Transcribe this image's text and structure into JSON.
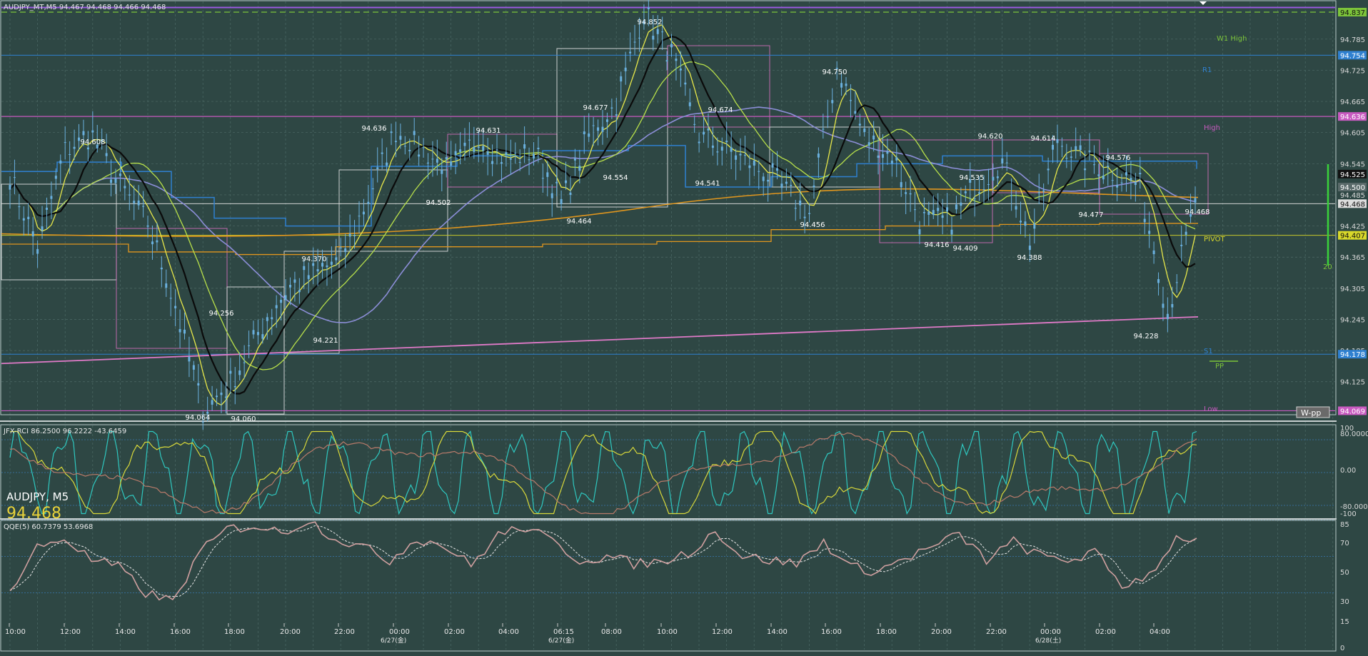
{
  "header": {
    "symbol_line": "AUDJPY_MT,M5  94.467 94.468 94.466 94.468"
  },
  "symbol_box": {
    "name": "AUDJPY, M5",
    "price": "94.468"
  },
  "colors": {
    "background": "#2e4744",
    "grid": "#4d6a66",
    "candle": "#6ab0de",
    "black_ma": "#0a0a0a",
    "yellow_ma": "#e8e84a",
    "green_ma": "#b8e04a",
    "purple_ma": "#8c8ed8",
    "orange_ma": "#e0961e",
    "blue_step": "#2f80d0",
    "magenta_line": "#e07ac8",
    "pivot_line": "#c8c82a",
    "rci_cyan": "#2ec8c0",
    "rci_yellow": "#d8d83a",
    "rci_brown": "#b87a6a",
    "qqe_main": "#d0a0a0",
    "qqe_signal": "#e8e8e8"
  },
  "main_axis": {
    "ticks": [
      "94.785",
      "94.725",
      "94.665",
      "94.605",
      "94.545",
      "94.485",
      "94.425",
      "94.365",
      "94.305",
      "94.245",
      "94.185",
      "94.125"
    ]
  },
  "price_tags": [
    {
      "value": "94.837",
      "color": "#7cc43a"
    },
    {
      "value": "94.754",
      "color": "#2f80d0"
    },
    {
      "value": "94.636",
      "color": "#c85ac0"
    },
    {
      "value": "94.525",
      "color": "#111111"
    },
    {
      "value": "94.500",
      "color": "#5a6a6a"
    },
    {
      "value": "94.468",
      "color": "#dddddd"
    },
    {
      "value": "94.407",
      "color": "#d8d82a"
    },
    {
      "value": "94.178",
      "color": "#2f80d0"
    },
    {
      "value": "94.069",
      "color": "#c85ac0"
    }
  ],
  "level_labels": {
    "w1_high": "W1 High",
    "r1": "R1",
    "high": "High",
    "pivot": "PIVOT",
    "s1": "S1",
    "pp": "PP",
    "low": "Low",
    "wpp_button": "W-pp",
    "side_number": "20"
  },
  "peak_labels": [
    "94.852",
    "94.608",
    "94.636",
    "94.631",
    "94.677",
    "94.674",
    "94.750",
    "94.620",
    "94.614",
    "94.576",
    "94.535",
    "94.468",
    "94.554",
    "94.541",
    "94.502",
    "94.464",
    "94.456",
    "94.477",
    "94.416",
    "94.409",
    "94.388",
    "94.370",
    "94.256",
    "94.221",
    "94.228",
    "94.064",
    "94.060"
  ],
  "rci": {
    "header": "JFX-RCI 86.2500 96.2222 -43.6459",
    "ticks": [
      "100",
      "80.0000",
      "0.00",
      "-80.0000",
      "-100"
    ]
  },
  "qqe": {
    "header": "QQE(5) 60.7379 53.6968",
    "ticks": [
      "85",
      "70",
      "50",
      "30",
      "15",
      "0"
    ]
  },
  "time_axis": {
    "labels": [
      "10:00",
      "12:00",
      "14:00",
      "16:00",
      "18:00",
      "20:00",
      "22:00",
      "00:00",
      "02:00",
      "04:00",
      "06:15",
      "08:00",
      "10:00",
      "12:00",
      "14:00",
      "16:00",
      "18:00",
      "20:00",
      "22:00",
      "00:00",
      "02:00",
      "04:00"
    ],
    "dates": [
      "6/27(金)",
      "6/27(金)",
      "6/28(土)"
    ]
  },
  "chart_data": {
    "type": "line",
    "title": "AUDJPY_MT,M5",
    "last_price": 94.468,
    "ylim": [
      94.06,
      94.87
    ],
    "x": [
      "10:00",
      "11:00",
      "12:00",
      "13:00",
      "14:00",
      "15:00",
      "16:00",
      "17:00",
      "18:00",
      "19:00",
      "20:00",
      "21:00",
      "22:00",
      "23:00",
      "00:00",
      "01:00",
      "02:00",
      "03:00",
      "04:00",
      "05:00",
      "06:15",
      "07:00",
      "08:00",
      "09:00",
      "10:00",
      "11:00",
      "12:00",
      "13:00",
      "14:00",
      "15:00",
      "16:00",
      "17:00",
      "18:00",
      "19:00",
      "20:00",
      "21:00",
      "22:00",
      "23:00",
      "00:00",
      "01:00",
      "02:00",
      "03:00",
      "04:00",
      "05:00"
    ],
    "series": [
      {
        "values": [
          94.52,
          94.38,
          94.57,
          94.6,
          94.5,
          94.43,
          94.27,
          94.07,
          94.12,
          94.22,
          94.3,
          94.33,
          94.36,
          94.48,
          94.61,
          94.57,
          94.53,
          94.6,
          94.55,
          94.57,
          94.47,
          94.6,
          94.66,
          94.84,
          94.75,
          94.6,
          94.57,
          94.54,
          94.5,
          94.45,
          94.73,
          94.6,
          94.56,
          94.44,
          94.43,
          94.5,
          94.55,
          94.4,
          94.59,
          94.55,
          94.53,
          94.5,
          94.26,
          94.47
        ]
      }
    ],
    "levels": [
      {
        "name": "W1 High",
        "value": 94.837
      },
      {
        "name": "R1",
        "value": 94.754
      },
      {
        "name": "High",
        "value": 94.636
      },
      {
        "name": "PIVOT",
        "value": 94.407
      },
      {
        "name": "S1",
        "value": 94.178
      },
      {
        "name": "Low",
        "value": 94.069
      }
    ],
    "annotations": [
      94.852,
      94.608,
      94.636,
      94.631,
      94.677,
      94.674,
      94.75,
      94.62,
      94.614,
      94.576,
      94.535,
      94.468,
      94.554,
      94.541,
      94.502,
      94.464,
      94.456,
      94.477,
      94.416,
      94.409,
      94.388,
      94.37,
      94.256,
      94.221,
      94.228,
      94.064,
      94.06
    ],
    "rci_last": [
      86.25,
      96.2222,
      -43.6459
    ],
    "qqe_last": [
      60.7379,
      53.6968
    ]
  }
}
